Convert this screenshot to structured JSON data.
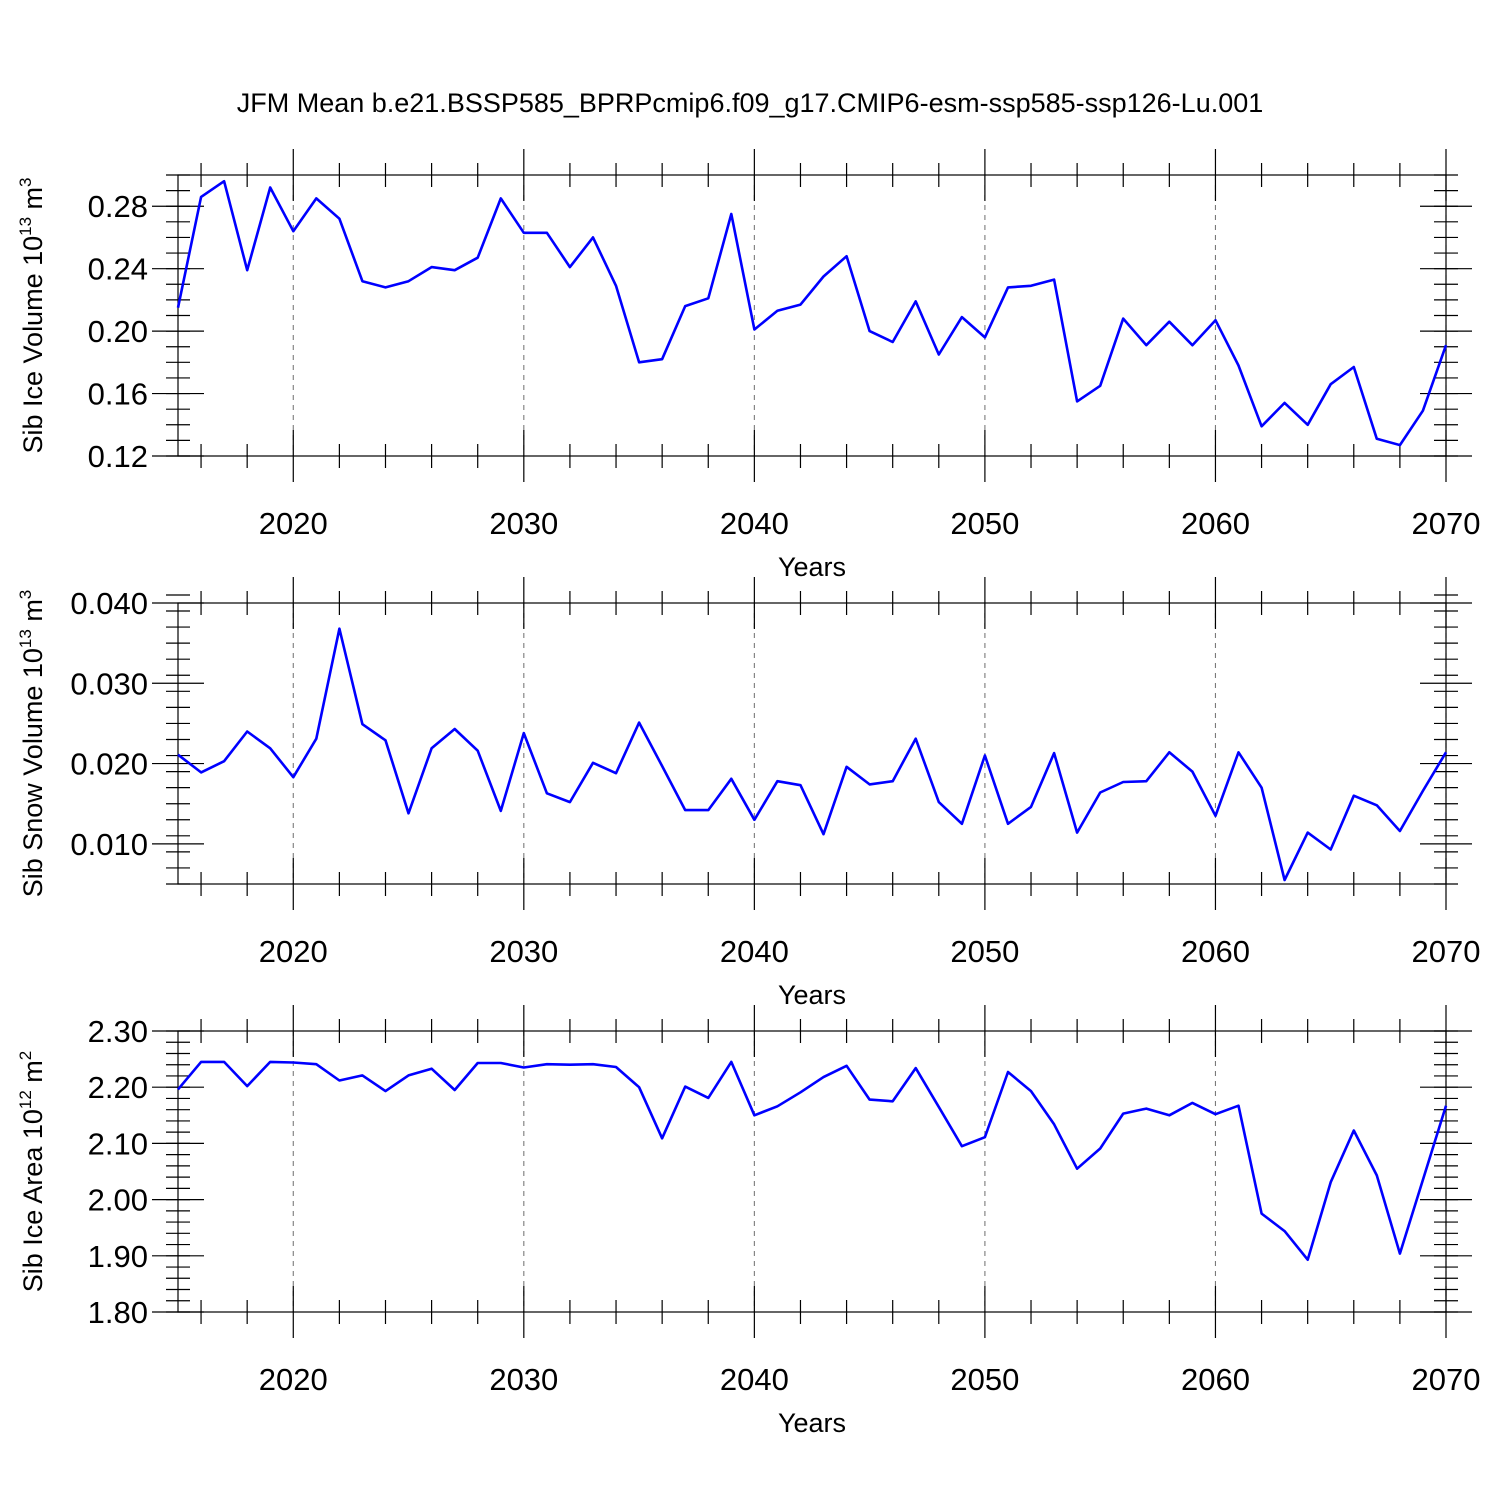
{
  "title": "JFM Mean b.e21.BSSP585_BPRPcmip6.f09_g17.CMIP6-esm-ssp585-ssp126-Lu.001",
  "chart_data": [
    {
      "type": "line",
      "xlabel": "Years",
      "ylabel": "Sib Ice Volume 10",
      "ylabel_sup1": "13",
      "ylabel_unit": " m",
      "ylabel_sup2": "3",
      "xlim": [
        2015,
        2070
      ],
      "ylim": [
        0.12,
        0.3
      ],
      "yticks": [
        "0.12",
        "0.16",
        "0.20",
        "0.24",
        "0.28"
      ],
      "ytick_values": [
        0.12,
        0.16,
        0.2,
        0.24,
        0.28
      ],
      "ytick_minor_step": 0.01,
      "xticks": [
        "2020",
        "2030",
        "2040",
        "2050",
        "2060",
        "2070"
      ],
      "xtick_values": [
        2020,
        2030,
        2040,
        2050,
        2060,
        2070
      ],
      "grid_x": true,
      "color": "#0000ff",
      "x": [
        2015,
        2016,
        2017,
        2018,
        2019,
        2020,
        2021,
        2022,
        2023,
        2024,
        2025,
        2026,
        2027,
        2028,
        2029,
        2030,
        2031,
        2032,
        2033,
        2034,
        2035,
        2036,
        2037,
        2038,
        2039,
        2040,
        2041,
        2042,
        2043,
        2044,
        2045,
        2046,
        2047,
        2048,
        2049,
        2050,
        2051,
        2052,
        2053,
        2054,
        2055,
        2056,
        2057,
        2058,
        2059,
        2060,
        2061,
        2062,
        2063,
        2064,
        2065,
        2066,
        2067,
        2068,
        2069,
        2070
      ],
      "values": [
        0.215,
        0.286,
        0.296,
        0.239,
        0.292,
        0.264,
        0.285,
        0.272,
        0.232,
        0.228,
        0.232,
        0.241,
        0.239,
        0.247,
        0.285,
        0.263,
        0.263,
        0.241,
        0.26,
        0.229,
        0.18,
        0.182,
        0.216,
        0.221,
        0.275,
        0.201,
        0.213,
        0.217,
        0.235,
        0.248,
        0.2,
        0.193,
        0.219,
        0.185,
        0.209,
        0.196,
        0.228,
        0.229,
        0.233,
        0.155,
        0.165,
        0.208,
        0.191,
        0.206,
        0.191,
        0.207,
        0.178,
        0.139,
        0.154,
        0.14,
        0.166,
        0.177,
        0.131,
        0.127,
        0.149,
        0.191
      ]
    },
    {
      "type": "line",
      "xlabel": "Years",
      "ylabel": "Sib Snow Volume 10",
      "ylabel_sup1": "13",
      "ylabel_unit": " m",
      "ylabel_sup2": "3",
      "xlim": [
        2015,
        2070
      ],
      "ylim": [
        0.005,
        0.04
      ],
      "yticks": [
        "0.010",
        "0.020",
        "0.030",
        "0.040"
      ],
      "ytick_values": [
        0.01,
        0.02,
        0.03,
        0.04
      ],
      "ytick_minor_step": 0.002,
      "xticks": [
        "2020",
        "2030",
        "2040",
        "2050",
        "2060",
        "2070"
      ],
      "xtick_values": [
        2020,
        2030,
        2040,
        2050,
        2060,
        2070
      ],
      "grid_x": true,
      "color": "#0000ff",
      "x": [
        2015,
        2016,
        2017,
        2018,
        2019,
        2020,
        2021,
        2022,
        2023,
        2024,
        2025,
        2026,
        2027,
        2028,
        2029,
        2030,
        2031,
        2032,
        2033,
        2034,
        2035,
        2036,
        2037,
        2038,
        2039,
        2040,
        2041,
        2042,
        2043,
        2044,
        2045,
        2046,
        2047,
        2048,
        2049,
        2050,
        2051,
        2052,
        2053,
        2054,
        2055,
        2056,
        2057,
        2058,
        2059,
        2060,
        2061,
        2062,
        2063,
        2064,
        2065,
        2066,
        2067,
        2068,
        2069,
        2070
      ],
      "values": [
        0.0211,
        0.0189,
        0.0203,
        0.024,
        0.0219,
        0.0183,
        0.0231,
        0.0368,
        0.0249,
        0.0229,
        0.0138,
        0.0219,
        0.0243,
        0.0216,
        0.0141,
        0.0238,
        0.0163,
        0.0152,
        0.0201,
        0.0188,
        0.0251,
        0.0197,
        0.0142,
        0.0142,
        0.0181,
        0.013,
        0.0178,
        0.0173,
        0.0112,
        0.0196,
        0.0174,
        0.0178,
        0.0231,
        0.0152,
        0.0125,
        0.021,
        0.0125,
        0.0146,
        0.0213,
        0.0114,
        0.0164,
        0.0177,
        0.0178,
        0.0214,
        0.019,
        0.0135,
        0.0214,
        0.017,
        0.0055,
        0.0114,
        0.0093,
        0.016,
        0.0148,
        0.0116,
        0.0166,
        0.0214
      ]
    },
    {
      "type": "line",
      "xlabel": "Years",
      "ylabel": "Sib Ice Area 10",
      "ylabel_sup1": "12",
      "ylabel_unit": " m",
      "ylabel_sup2": "2",
      "xlim": [
        2015,
        2070
      ],
      "ylim": [
        1.8,
        2.3
      ],
      "yticks": [
        "1.80",
        "1.90",
        "2.00",
        "2.10",
        "2.20",
        "2.30"
      ],
      "ytick_values": [
        1.8,
        1.9,
        2.0,
        2.1,
        2.2,
        2.3
      ],
      "ytick_minor_step": 0.02,
      "xticks": [
        "2020",
        "2030",
        "2040",
        "2050",
        "2060",
        "2070"
      ],
      "xtick_values": [
        2020,
        2030,
        2040,
        2050,
        2060,
        2070
      ],
      "grid_x": true,
      "color": "#0000ff",
      "x": [
        2015,
        2016,
        2017,
        2018,
        2019,
        2020,
        2021,
        2022,
        2023,
        2024,
        2025,
        2026,
        2027,
        2028,
        2029,
        2030,
        2031,
        2032,
        2033,
        2034,
        2035,
        2036,
        2037,
        2038,
        2039,
        2040,
        2041,
        2042,
        2043,
        2044,
        2045,
        2046,
        2047,
        2048,
        2049,
        2050,
        2051,
        2052,
        2053,
        2054,
        2055,
        2056,
        2057,
        2058,
        2059,
        2060,
        2061,
        2062,
        2063,
        2064,
        2065,
        2066,
        2067,
        2068,
        2069,
        2070
      ],
      "values": [
        2.196,
        2.245,
        2.245,
        2.202,
        2.245,
        2.244,
        2.241,
        2.212,
        2.221,
        2.193,
        2.221,
        2.233,
        2.195,
        2.243,
        2.243,
        2.235,
        2.241,
        2.24,
        2.241,
        2.236,
        2.2,
        2.109,
        2.201,
        2.181,
        2.245,
        2.15,
        2.166,
        2.191,
        2.218,
        2.238,
        2.178,
        2.175,
        2.234,
        2.165,
        2.095,
        2.111,
        2.227,
        2.193,
        2.134,
        2.055,
        2.091,
        2.153,
        2.162,
        2.15,
        2.172,
        2.152,
        2.167,
        1.975,
        1.944,
        1.893,
        2.031,
        2.123,
        2.043,
        1.904,
        2.035,
        2.167
      ]
    }
  ]
}
